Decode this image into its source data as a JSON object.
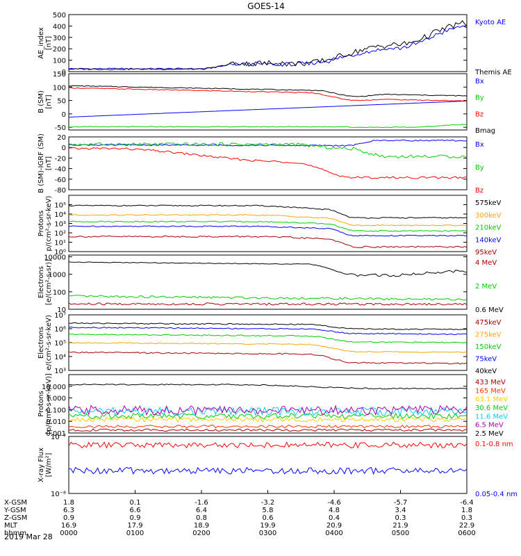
{
  "title": "GOES-14",
  "date_label": "2019 Mar 28",
  "chart_data": [
    {
      "type": "line",
      "ylabel": [
        "AE_index",
        "[nT]"
      ],
      "ylim": [
        0,
        500
      ],
      "yticks": [
        "0",
        "100",
        "200",
        "300",
        "400",
        "500"
      ],
      "series": [
        {
          "name": "Kyoto AE",
          "color": "#0000ff",
          "kind": "ae_kyoto"
        },
        {
          "name": "Themis AE",
          "color": "#000000",
          "kind": "ae_themis"
        }
      ]
    },
    {
      "type": "line",
      "ylabel": [
        "B (SM)",
        "[nT]"
      ],
      "ylim": [
        -60,
        150
      ],
      "yticks": [
        "-50",
        "0",
        "50",
        "100",
        "150"
      ],
      "series": [
        {
          "name": "Bx",
          "color": "#0000ff",
          "kind": "bsm_bx"
        },
        {
          "name": "By",
          "color": "#00cc00",
          "kind": "bsm_by"
        },
        {
          "name": "Bz",
          "color": "#ff0000",
          "kind": "bsm_bz"
        },
        {
          "name": "Bmag",
          "color": "#000000",
          "kind": "bsm_bmag"
        }
      ]
    },
    {
      "type": "line",
      "ylabel": [
        "B (SM)-IGRF (SM)",
        "[nT]"
      ],
      "ylim": [
        -80,
        20
      ],
      "yticks": [
        "-80",
        "-60",
        "-40",
        "-20",
        "0",
        "20"
      ],
      "series": [
        {
          "name": "Bx",
          "color": "#0000ff",
          "kind": "dbsm_bx"
        },
        {
          "name": "By",
          "color": "#00cc00",
          "kind": "dbsm_by"
        },
        {
          "name": "Bz",
          "color": "#ff0000",
          "kind": "dbsm_bz"
        }
      ]
    },
    {
      "type": "line",
      "log": true,
      "ylabel": [
        "Protons",
        "p/(cm²-s-sr-keV)"
      ],
      "ylim": [
        0,
        6
      ],
      "yticks": [
        "10⁰",
        "10¹",
        "10²",
        "10³",
        "10⁴",
        "10⁵"
      ],
      "series": [
        {
          "name": "575keV",
          "color": "#000000",
          "kind": "prot_575"
        },
        {
          "name": "300keV",
          "color": "#ffa500",
          "kind": "prot_300"
        },
        {
          "name": "210keV",
          "color": "#00cc00",
          "kind": "prot_210"
        },
        {
          "name": "140keV",
          "color": "#0000ff",
          "kind": "prot_140"
        },
        {
          "name": "95keV",
          "color": "#aa0000",
          "kind": "prot_95"
        }
      ]
    },
    {
      "type": "line",
      "log": true,
      "ylabel": [
        "Electrons",
        "[e/(cm²-s-sr)]"
      ],
      "ylim": [
        1,
        4.1
      ],
      "yticks": [
        "10",
        "100",
        "1000",
        "10000"
      ],
      "series": [
        {
          "name": "4 MeV",
          "color": "#aa0000",
          "kind": "el_4"
        },
        {
          "name": "2 MeV",
          "color": "#00cc00",
          "kind": "el_2"
        },
        {
          "name": "0.6 MeV",
          "color": "#000000",
          "kind": "el_06"
        }
      ]
    },
    {
      "type": "line",
      "log": true,
      "ylabel": [
        "Electrons",
        "e/(cm²-s-sr-keV)"
      ],
      "ylim": [
        3,
        7
      ],
      "yticks": [
        "10³",
        "10⁴",
        "10⁵",
        "10⁶",
        "10⁷"
      ],
      "series": [
        {
          "name": "475keV",
          "color": "#aa0000",
          "kind": "ee_475"
        },
        {
          "name": "275keV",
          "color": "#ffa500",
          "kind": "ee_275"
        },
        {
          "name": "150keV",
          "color": "#00cc00",
          "kind": "ee_150"
        },
        {
          "name": "75keV",
          "color": "#0000ff",
          "kind": "ee_75"
        },
        {
          "name": "40keV",
          "color": "#000000",
          "kind": "ee_40"
        }
      ]
    },
    {
      "type": "line",
      "log": true,
      "ylabel": [
        "Protons",
        "[p/(cm²-s-sr-keV)]"
      ],
      "ylim": [
        -3,
        2
      ],
      "yticks": [
        "0.001",
        "0.010",
        "0.100",
        "1.000",
        "10.000"
      ],
      "series": [
        {
          "name": "433 MeV",
          "color": "#aa0000",
          "kind": "hp_433"
        },
        {
          "name": "165 MeV",
          "color": "#ff3300",
          "kind": "hp_165"
        },
        {
          "name": "63.1 MeV",
          "color": "#ffcc00",
          "kind": "hp_63"
        },
        {
          "name": "30.6 MeV",
          "color": "#00cc00",
          "kind": "hp_30"
        },
        {
          "name": "11.6 MeV",
          "color": "#00ccff",
          "kind": "hp_11"
        },
        {
          "name": "6.5 MeV",
          "color": "#aa00aa",
          "kind": "hp_6"
        },
        {
          "name": "2.5 MeV",
          "color": "#000000",
          "kind": "hp_2"
        }
      ]
    },
    {
      "type": "line",
      "log": true,
      "ylabel": [
        "X-ray Flux",
        "[W/m²]"
      ],
      "ylim": [
        -8,
        -7
      ],
      "yticks": [
        "10⁻⁸",
        "10⁻⁷"
      ],
      "series": [
        {
          "name": "0.1-0.8 nm",
          "color": "#ff0000",
          "kind": "xr_long"
        },
        {
          "name": "0.05-0.4 nm",
          "color": "#0000ff",
          "kind": "xr_short"
        }
      ]
    }
  ],
  "orbit_table": {
    "row_labels": [
      "X-GSM",
      "Y-GSM",
      "Z-GSM",
      "MLT",
      "hhmm"
    ],
    "columns": [
      [
        "1.8",
        "6.3",
        "0.9",
        "16.9",
        "0000"
      ],
      [
        "0.1",
        "6.6",
        "0.9",
        "17.9",
        "0100"
      ],
      [
        "-1.6",
        "6.4",
        "0.8",
        "18.9",
        "0200"
      ],
      [
        "-3.2",
        "5.8",
        "0.6",
        "19.9",
        "0300"
      ],
      [
        "-4.6",
        "4.8",
        "0.4",
        "20.9",
        "0400"
      ],
      [
        "-5.7",
        "3.4",
        "0.3",
        "21.9",
        "0500"
      ],
      [
        "-6.4",
        "1.8",
        "0.3",
        "22.9",
        "0600"
      ]
    ]
  }
}
